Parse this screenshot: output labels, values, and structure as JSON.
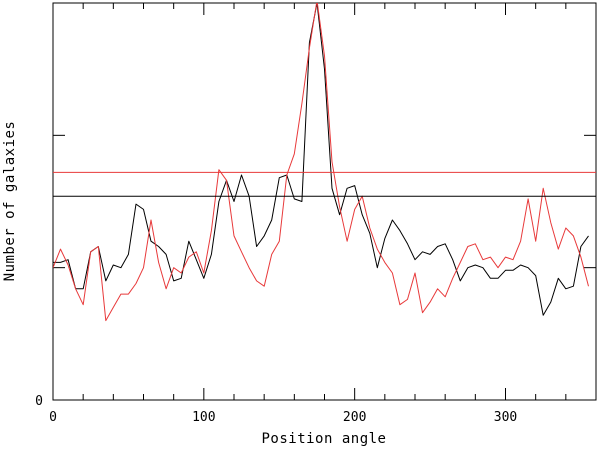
{
  "chart_data": {
    "type": "line",
    "xlabel": "Position angle",
    "ylabel": "Number of galaxies",
    "xlim": [
      0,
      360
    ],
    "x_ticks": [
      0,
      100,
      200,
      300
    ],
    "y_tick_labels": [
      {
        "label": "0",
        "value": 0
      }
    ],
    "ylim": [
      0,
      15
    ],
    "grid": false,
    "series": [
      {
        "color": "#000000",
        "x": [
          0,
          5,
          10,
          15,
          20,
          25,
          30,
          35,
          40,
          45,
          50,
          55,
          60,
          65,
          70,
          75,
          80,
          85,
          90,
          95,
          100,
          105,
          110,
          115,
          120,
          125,
          130,
          135,
          140,
          145,
          150,
          155,
          160,
          165,
          170,
          175,
          180,
          185,
          190,
          195,
          200,
          205,
          210,
          215,
          220,
          225,
          230,
          235,
          240,
          245,
          250,
          255,
          260,
          265,
          270,
          275,
          280,
          285,
          290,
          295,
          300,
          305,
          310,
          315,
          320,
          325,
          330,
          335,
          340,
          345,
          350,
          355
        ],
        "values": [
          5.2,
          5.2,
          5.3,
          4.2,
          4.2,
          5.6,
          5.8,
          4.5,
          5.1,
          5.0,
          5.5,
          7.4,
          7.2,
          6.0,
          5.8,
          5.5,
          4.5,
          4.6,
          6.0,
          5.3,
          4.6,
          5.5,
          7.5,
          8.3,
          7.5,
          8.5,
          7.7,
          5.8,
          6.2,
          6.8,
          8.4,
          8.5,
          7.6,
          7.5,
          13.5,
          15.0,
          12.5,
          8.0,
          7.0,
          8.0,
          8.1,
          7.0,
          6.3,
          5.0,
          6.1,
          6.8,
          6.4,
          5.9,
          5.3,
          5.6,
          5.5,
          5.8,
          5.9,
          5.3,
          4.5,
          5.0,
          5.1,
          5.0,
          4.6,
          4.6,
          4.9,
          4.9,
          5.1,
          5.0,
          4.7,
          3.2,
          3.7,
          4.6,
          4.2,
          4.3,
          5.8,
          6.2
        ]
      },
      {
        "color": "#e8393a",
        "x": [
          0,
          5,
          10,
          15,
          20,
          25,
          30,
          35,
          40,
          45,
          50,
          55,
          60,
          65,
          70,
          75,
          80,
          85,
          90,
          95,
          100,
          105,
          110,
          115,
          120,
          125,
          130,
          135,
          140,
          145,
          150,
          155,
          160,
          165,
          170,
          175,
          180,
          185,
          190,
          195,
          200,
          205,
          210,
          215,
          220,
          225,
          230,
          235,
          240,
          245,
          250,
          255,
          260,
          265,
          270,
          275,
          280,
          285,
          290,
          295,
          300,
          305,
          310,
          315,
          320,
          325,
          330,
          335,
          340,
          345,
          350,
          355
        ],
        "values": [
          5.0,
          5.7,
          5.1,
          4.2,
          3.6,
          5.6,
          5.8,
          3.0,
          3.5,
          4.0,
          4.0,
          4.4,
          5.0,
          6.8,
          5.2,
          4.2,
          5.0,
          4.8,
          5.4,
          5.6,
          4.8,
          6.4,
          8.7,
          8.3,
          6.2,
          5.6,
          5.0,
          4.5,
          4.3,
          5.5,
          6.0,
          8.5,
          9.3,
          11.2,
          13.3,
          15.1,
          13.0,
          9.0,
          7.3,
          6.0,
          7.2,
          7.7,
          6.5,
          5.7,
          5.2,
          4.8,
          3.6,
          3.8,
          4.8,
          3.3,
          3.7,
          4.2,
          3.9,
          4.6,
          5.2,
          5.8,
          5.9,
          5.3,
          5.4,
          5.0,
          5.4,
          5.3,
          6.0,
          7.6,
          6.0,
          8.0,
          6.7,
          5.7,
          6.5,
          6.2,
          5.4,
          4.3
        ]
      }
    ],
    "reference_lines": [
      {
        "color": "#000000",
        "y": 7.7
      },
      {
        "color": "#e8393a",
        "y": 8.6
      }
    ]
  }
}
